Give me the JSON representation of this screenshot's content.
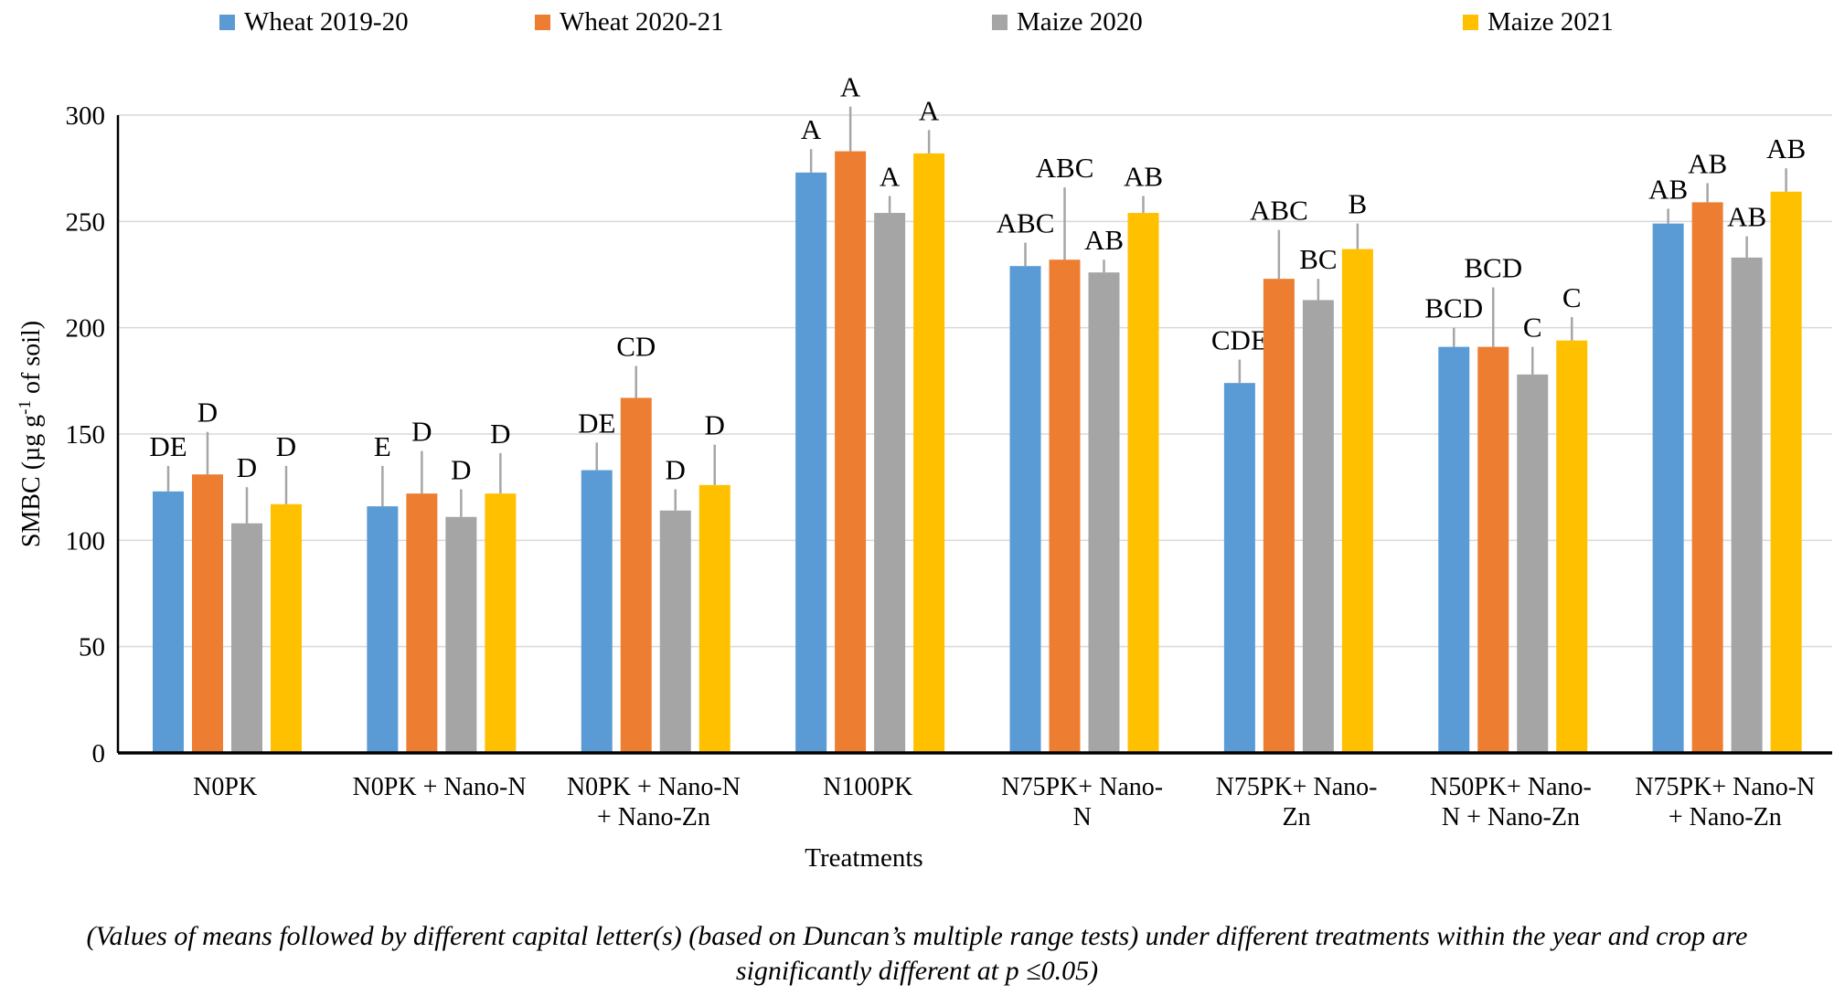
{
  "legend": {
    "items": [
      {
        "label": "Wheat 2019-20",
        "color": "#5B9BD5"
      },
      {
        "label": "Wheat 2020-21",
        "color": "#ED7D31"
      },
      {
        "label": "Maize 2020",
        "color": "#A5A5A5"
      },
      {
        "label": "Maize 2021",
        "color": "#FFC000"
      }
    ]
  },
  "chart_data": {
    "type": "bar",
    "title": "",
    "xlabel": "Treatments",
    "ylabel": "SMBC (µg g⁻¹ of soil)",
    "ylabel_parts": {
      "pre": "SMBC (µg g",
      "sup": "-1",
      "post": " of soil)"
    },
    "ylim": [
      0,
      300
    ],
    "ytick_step": 50,
    "grid": true,
    "legend_position": "top",
    "categories": [
      {
        "lines": [
          "N0PK"
        ]
      },
      {
        "lines": [
          "N0PK + Nano-N"
        ]
      },
      {
        "lines": [
          "N0PK + Nano-N",
          "+ Nano-Zn"
        ]
      },
      {
        "lines": [
          "N100PK"
        ]
      },
      {
        "lines": [
          "N75PK+ Nano-",
          "N"
        ]
      },
      {
        "lines": [
          "N75PK+ Nano-",
          "Zn"
        ]
      },
      {
        "lines": [
          "N50PK+ Nano-",
          "N + Nano-Zn"
        ]
      },
      {
        "lines": [
          "N75PK+ Nano-N",
          "+ Nano-Zn"
        ]
      }
    ],
    "series": [
      {
        "name": "Wheat 2019-20",
        "color": "#5B9BD5",
        "values": [
          123,
          116,
          133,
          273,
          229,
          174,
          191,
          249
        ],
        "errors": [
          12,
          19,
          13,
          11,
          11,
          11,
          9,
          7
        ],
        "letters": [
          "DE",
          "E",
          "DE",
          "A",
          "ABC",
          "CDE",
          "BCD",
          "AB"
        ]
      },
      {
        "name": "Wheat 2020-21",
        "color": "#ED7D31",
        "values": [
          131,
          122,
          167,
          283,
          232,
          223,
          191,
          259
        ],
        "errors": [
          20,
          20,
          15,
          21,
          34,
          23,
          28,
          9
        ],
        "letters": [
          "D",
          "D",
          "CD",
          "A",
          "ABC",
          "ABC",
          "BCD",
          "AB"
        ]
      },
      {
        "name": "Maize 2020",
        "color": "#A5A5A5",
        "values": [
          108,
          111,
          114,
          254,
          226,
          213,
          178,
          233
        ],
        "errors": [
          17,
          13,
          10,
          8,
          6,
          10,
          13,
          10
        ],
        "letters": [
          "D",
          "D",
          "D",
          "A",
          "AB",
          "BC",
          "C",
          "AB"
        ]
      },
      {
        "name": "Maize 2021",
        "color": "#FFC000",
        "values": [
          117,
          122,
          126,
          282,
          254,
          237,
          194,
          264
        ],
        "errors": [
          18,
          19,
          19,
          11,
          8,
          12,
          11,
          11
        ],
        "letters": [
          "D",
          "D",
          "D",
          "A",
          "AB",
          "B",
          "C",
          "AB"
        ]
      }
    ],
    "error_bar_color": "#A6A6A6",
    "gridline_color": "#D9D9D9",
    "axis_color": "#000000"
  },
  "caption": {
    "line1": "(Values of means followed by different capital letter(s) (based on Duncan’s multiple range tests) under different treatments within the year and crop are",
    "line2": "significantly different at p ≤0.05)"
  }
}
